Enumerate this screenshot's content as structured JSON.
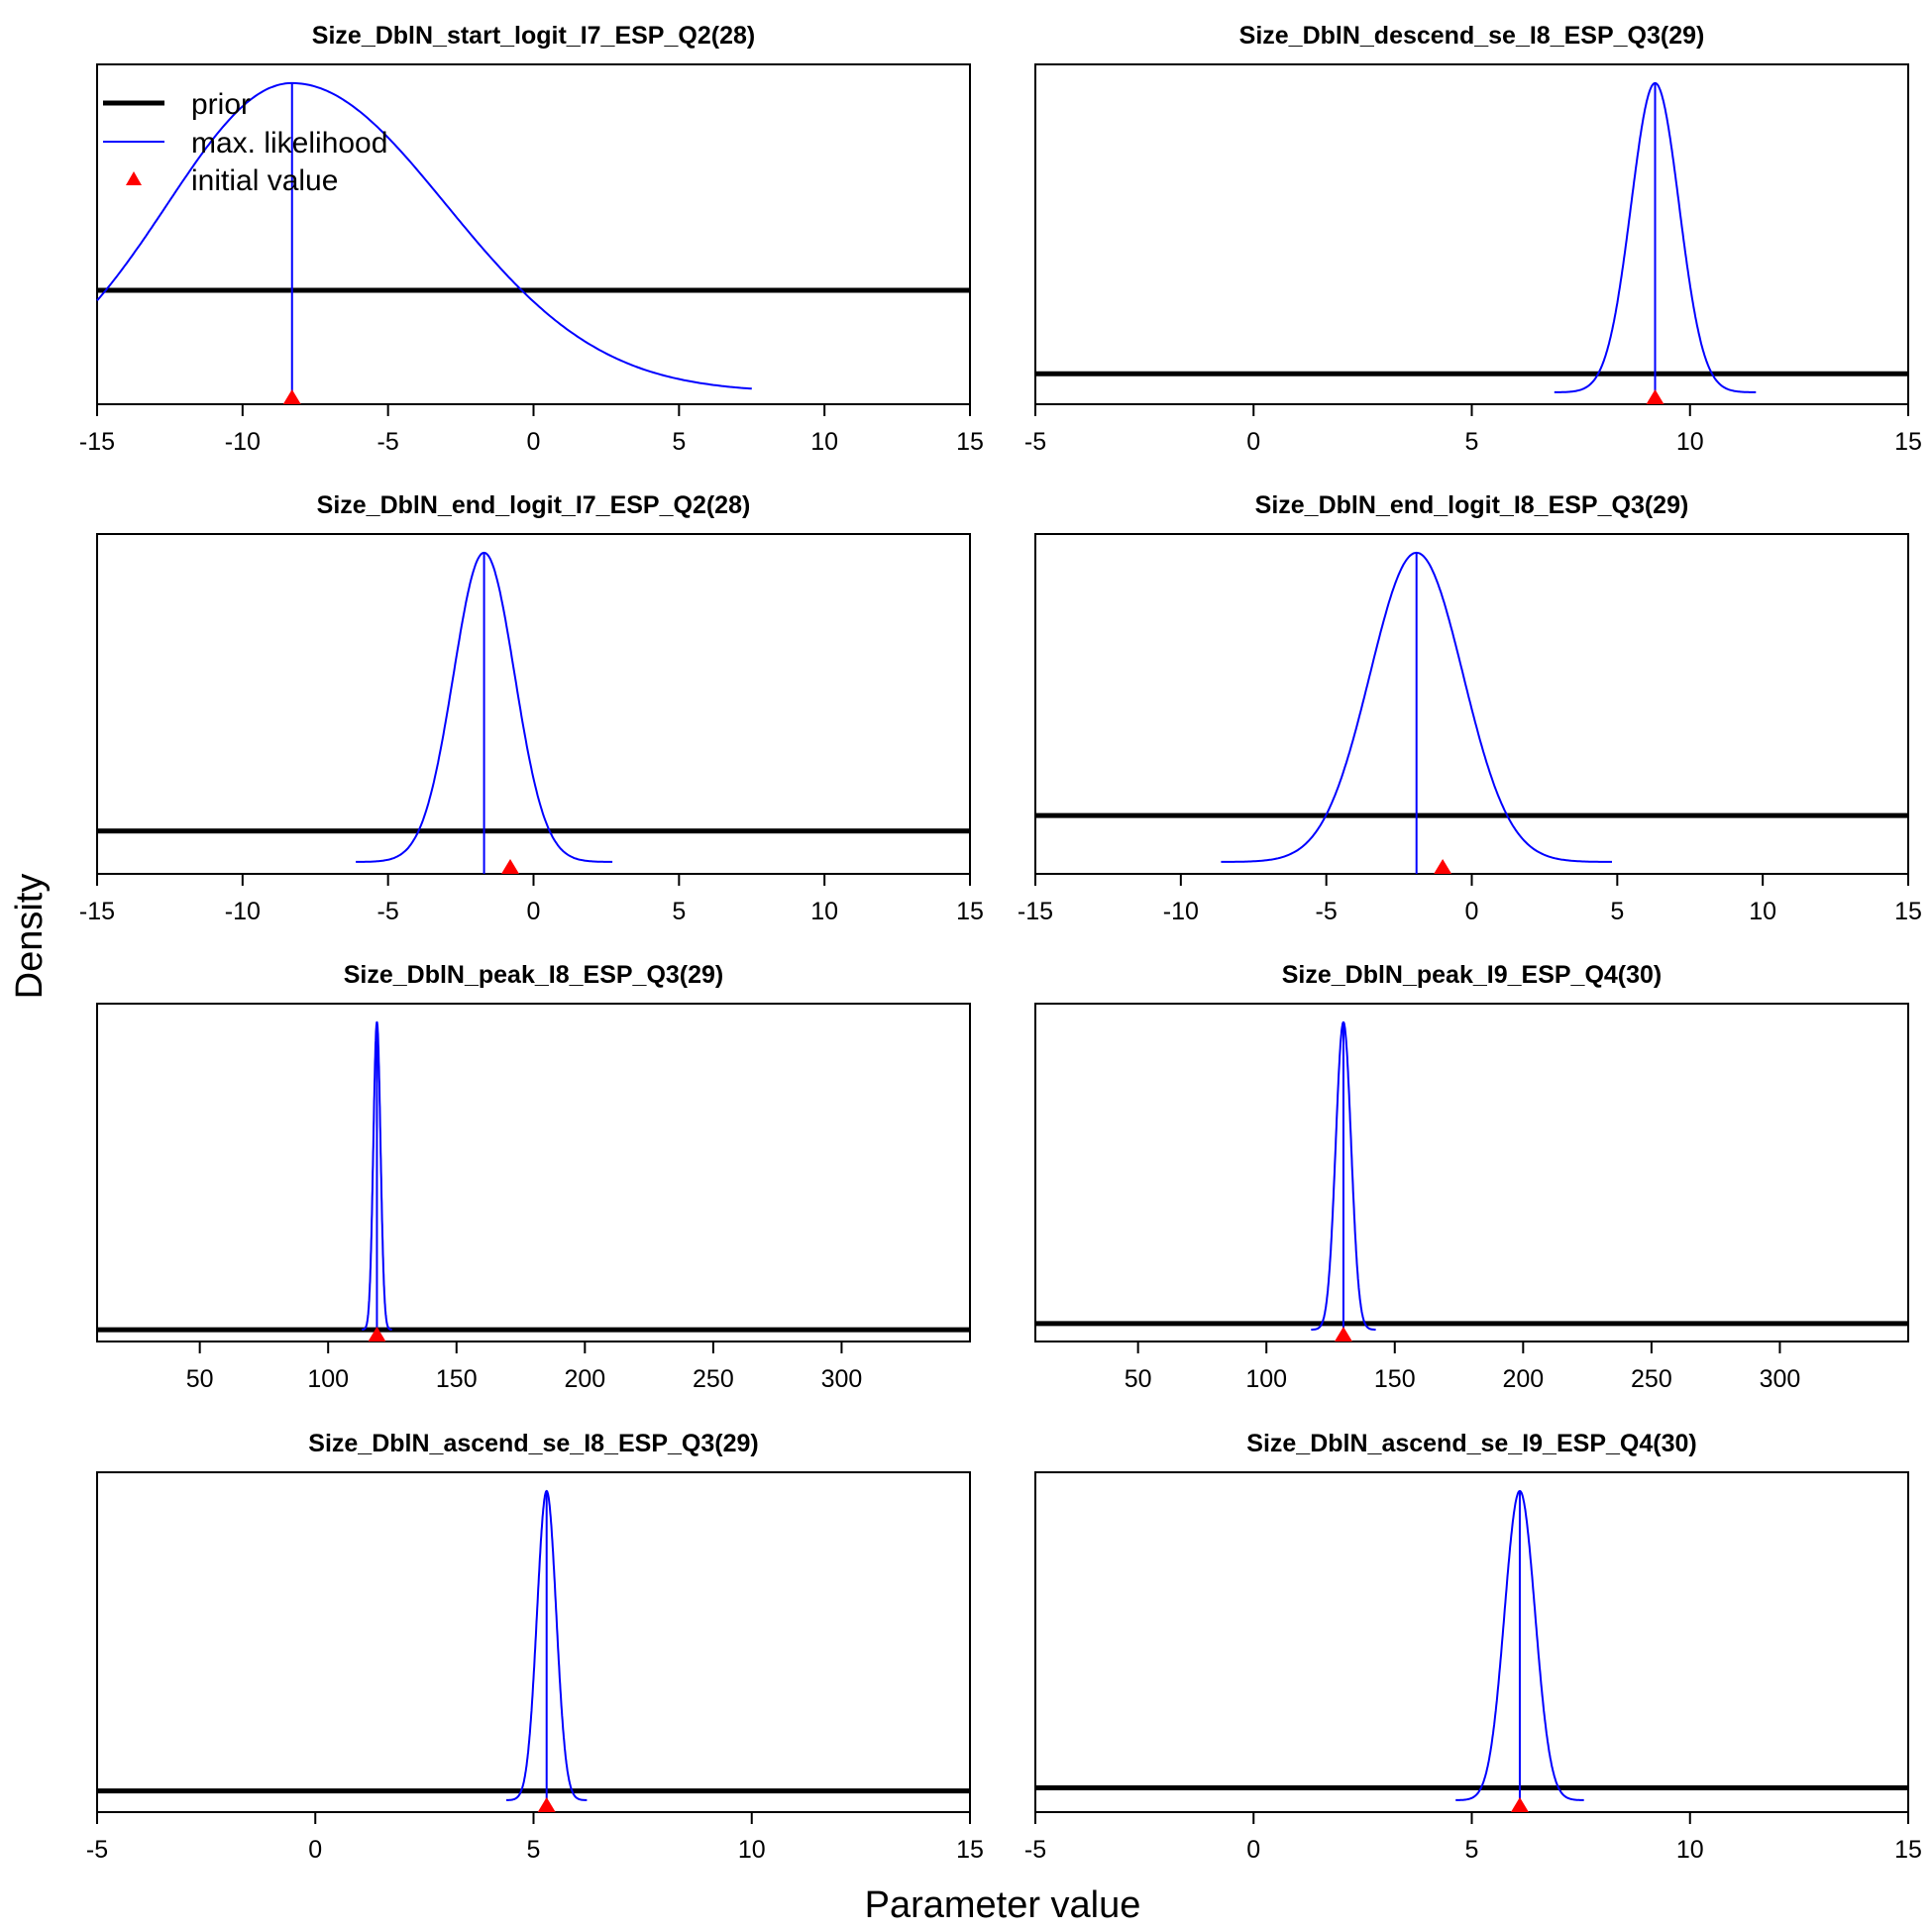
{
  "figure": {
    "xlabel": "Parameter value",
    "ylabel": "Density"
  },
  "legend": {
    "placement": "top-left of first panel",
    "items": [
      {
        "label": "prior",
        "color": "#000000",
        "kind": "thick-line"
      },
      {
        "label": "max. likelihood",
        "color": "#0000ff",
        "kind": "line"
      },
      {
        "label": "initial value",
        "color": "#ff0000",
        "kind": "triangle"
      }
    ]
  },
  "colors": {
    "prior": "#000000",
    "mle": "#0000ff",
    "initial": "#ff0000"
  },
  "chart_data": [
    {
      "type": "line",
      "title": "Size_DblN_start_logit_I7_ESP_Q2(28)",
      "xlim": [
        -15,
        15
      ],
      "xticks": [
        -15,
        -10,
        -5,
        0,
        5,
        10,
        15
      ],
      "tick_labels": [
        "-15",
        "-10",
        "-5",
        "0",
        "5",
        "10",
        "15"
      ],
      "mle": -8.3,
      "mle_shape": "right-skewed",
      "mle_range": [
        -15,
        7.5
      ],
      "initial_value": -8.3,
      "prior_level": 0.33
    },
    {
      "type": "line",
      "title": "Size_DblN_descend_se_I8_ESP_Q3(29)",
      "xlim": [
        -5,
        15
      ],
      "xticks": [
        -5,
        0,
        5,
        10,
        15
      ],
      "tick_labels": [
        "-5",
        "0",
        "5",
        "10",
        "15"
      ],
      "mle": 9.2,
      "mle_sd": 0.55,
      "initial_value": 9.2,
      "prior_level": 0.06
    },
    {
      "type": "line",
      "title": "Size_DblN_end_logit_I7_ESP_Q2(28)",
      "xlim": [
        -15,
        15
      ],
      "xticks": [
        -15,
        -10,
        -5,
        0,
        5,
        10,
        15
      ],
      "tick_labels": [
        "-15",
        "-10",
        "-5",
        "0",
        "5",
        "10",
        "15"
      ],
      "mle": -1.7,
      "mle_sd": 1.05,
      "initial_value": -0.8,
      "prior_level": 0.1
    },
    {
      "type": "line",
      "title": "Size_DblN_end_logit_I8_ESP_Q3(29)",
      "xlim": [
        -15,
        15
      ],
      "xticks": [
        -15,
        -10,
        -5,
        0,
        5,
        10,
        15
      ],
      "tick_labels": [
        "-15",
        "-10",
        "-5",
        "0",
        "5",
        "10",
        "15"
      ],
      "mle": -1.9,
      "mle_sd": 1.6,
      "initial_value": -1.0,
      "prior_level": 0.15
    },
    {
      "type": "line",
      "title": "Size_DblN_peak_I8_ESP_Q3(29)",
      "xlim": [
        10,
        350
      ],
      "xticks": [
        50,
        100,
        150,
        200,
        250,
        300
      ],
      "tick_labels": [
        "50",
        "100",
        "150",
        "200",
        "250",
        "300"
      ],
      "mle": 119,
      "mle_sd": 1.4,
      "initial_value": 119,
      "prior_level": 0.0
    },
    {
      "type": "line",
      "title": "Size_DblN_peak_I9_ESP_Q4(30)",
      "xlim": [
        10,
        350
      ],
      "xticks": [
        50,
        100,
        150,
        200,
        250,
        300
      ],
      "tick_labels": [
        "50",
        "100",
        "150",
        "200",
        "250",
        "300"
      ],
      "mle": 130,
      "mle_sd": 3.0,
      "initial_value": 130,
      "prior_level": 0.02
    },
    {
      "type": "line",
      "title": "Size_DblN_ascend_se_I8_ESP_Q3(29)",
      "xlim": [
        -5,
        15
      ],
      "xticks": [
        -5,
        0,
        5,
        10,
        15
      ],
      "tick_labels": [
        "-5",
        "0",
        "5",
        "10",
        "15"
      ],
      "mle": 5.3,
      "mle_sd": 0.22,
      "initial_value": 5.3,
      "prior_level": 0.03
    },
    {
      "type": "line",
      "title": "Size_DblN_ascend_se_I9_ESP_Q4(30)",
      "xlim": [
        -5,
        15
      ],
      "xticks": [
        -5,
        0,
        5,
        10,
        15
      ],
      "tick_labels": [
        "-5",
        "0",
        "5",
        "10",
        "15"
      ],
      "mle": 6.1,
      "mle_sd": 0.35,
      "initial_value": 6.1,
      "prior_level": 0.04
    }
  ]
}
